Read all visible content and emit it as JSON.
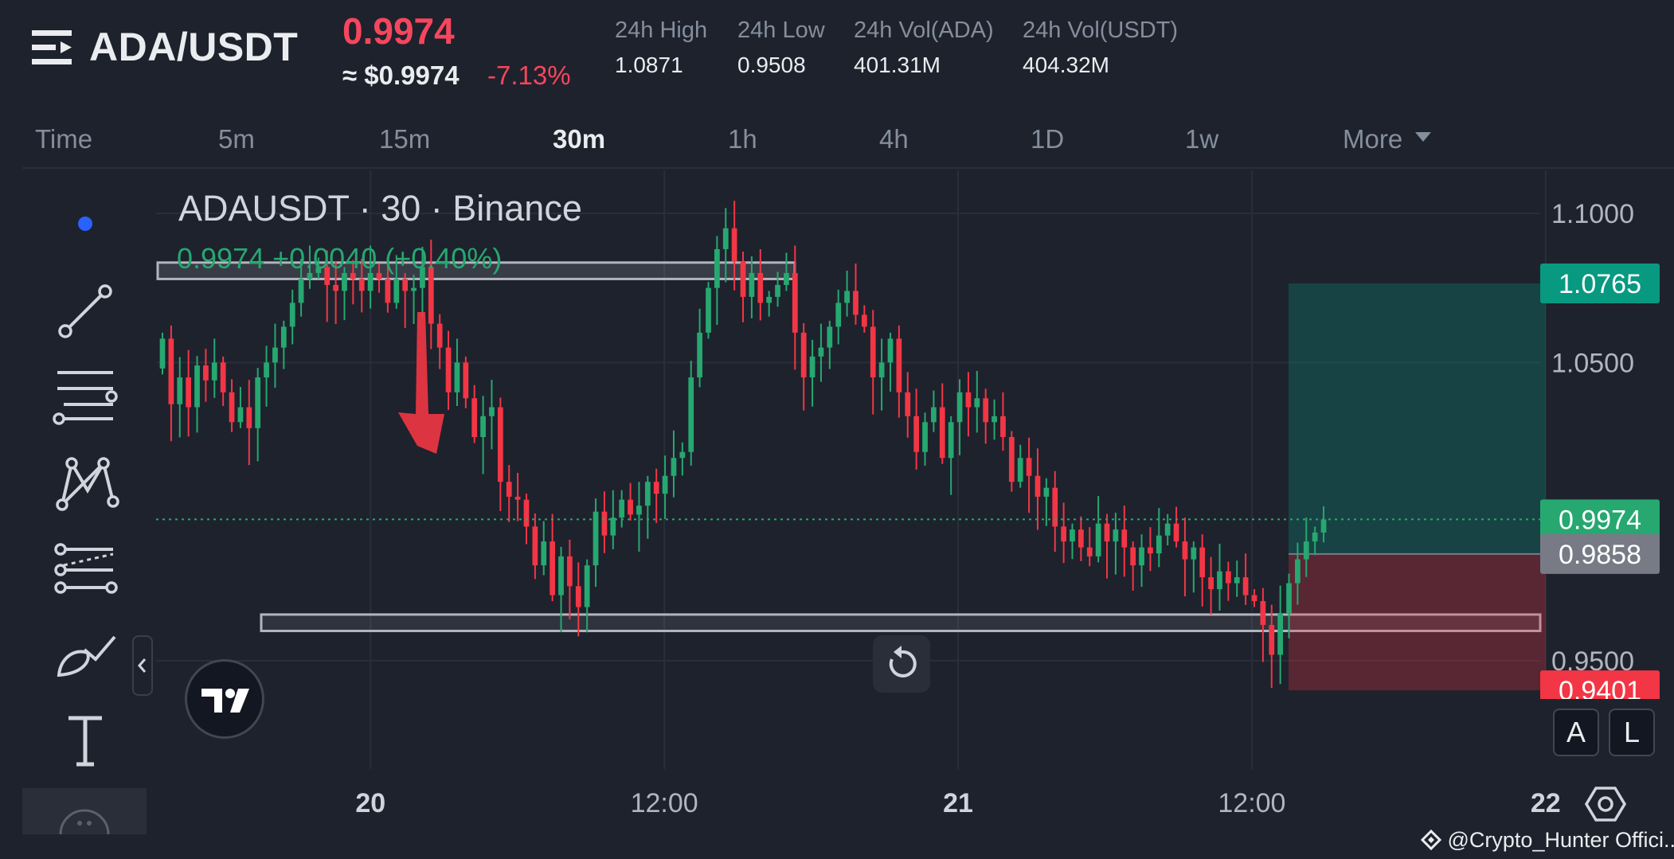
{
  "header": {
    "pair": "ADA/USDT",
    "last_price": "0.9974",
    "approx_usd": "≈ $0.9974",
    "change_pct": "-7.13%",
    "stats": [
      {
        "label": "24h High",
        "value": "1.0871"
      },
      {
        "label": "24h Low",
        "value": "0.9508"
      },
      {
        "label": "24h Vol(ADA)",
        "value": "401.31M"
      },
      {
        "label": "24h Vol(USDT)",
        "value": "404.32M"
      }
    ]
  },
  "intervals": [
    "Time",
    "5m",
    "15m",
    "30m",
    "1h",
    "4h",
    "1D",
    "1w",
    "More"
  ],
  "active_interval": "30m",
  "chart": {
    "legend": "ADAUSDT · 30 · Binance",
    "ohlc_change": "0.9974 +0.0040 (+0.40%)",
    "price_ticks": [
      {
        "value": 1.1,
        "label": "1.1000"
      },
      {
        "value": 1.05,
        "label": "1.0500"
      },
      {
        "value": 0.95,
        "label": "0.9500"
      }
    ],
    "price_badges": [
      {
        "value": 1.0765,
        "label": "1.0765",
        "color": "#089981"
      },
      {
        "value": 0.9974,
        "label": "0.9974",
        "color": "#26a870"
      },
      {
        "value": 0.9858,
        "label": "0.9858",
        "color": "#787b86"
      },
      {
        "value": 0.9401,
        "label": "0.9401",
        "color": "#f23645"
      }
    ],
    "time_ticks": [
      {
        "index": 17,
        "label": "20",
        "bold": true
      },
      {
        "index": 41,
        "label": "12:00",
        "bold": false
      },
      {
        "index": 65,
        "label": "21",
        "bold": true
      },
      {
        "index": 89,
        "label": "12:00",
        "bold": false
      },
      {
        "index": 113,
        "label": "22",
        "bold": true
      }
    ],
    "current_price": 0.9974,
    "position": {
      "entry": 0.9858,
      "target": 1.0765,
      "stop": 0.9401,
      "start_index": 92,
      "end_index": 113
    },
    "resistance_zone": {
      "top": 1.0835,
      "bottom": 1.078
    },
    "support_zone": {
      "top": 0.9655,
      "bottom": 0.96
    },
    "colors": {
      "up": "#26a870",
      "down": "#f23645",
      "bg": "#1e222d"
    }
  },
  "corner_buttons": [
    "A",
    "L"
  ],
  "watermark": "@Crypto_Hunter Offici..."
}
